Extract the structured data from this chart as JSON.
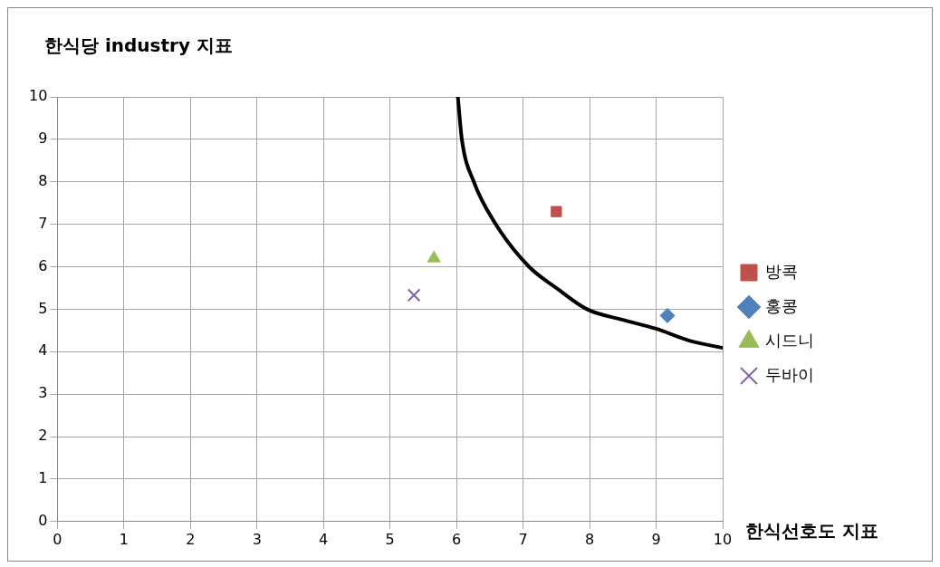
{
  "chart_data": {
    "type": "scatter",
    "xlabel": "한식선호도 지표",
    "ylabel": "한식당 industry 지표",
    "xlim": [
      0,
      10
    ],
    "ylim": [
      0,
      10
    ],
    "xticks": [
      0,
      1,
      2,
      3,
      4,
      5,
      6,
      7,
      8,
      9,
      10
    ],
    "yticks": [
      0,
      1,
      2,
      3,
      4,
      5,
      6,
      7,
      8,
      9,
      10
    ],
    "grid": true,
    "legend": "right",
    "series": [
      {
        "type": "line",
        "color": "#000000",
        "marker": "none",
        "x": [
          6.02,
          6.08,
          6.26,
          6.59,
          7.09,
          7.5,
          7.96,
          8.5,
          9,
          9.5,
          10
        ],
        "values": [
          10,
          9,
          8,
          7,
          6,
          5.5,
          5,
          4.75,
          4.54,
          4.26,
          4.09
        ]
      },
      {
        "name": "방콕",
        "color": "#c0504d",
        "marker": "square",
        "x": [
          7.5
        ],
        "values": [
          7.3
        ]
      },
      {
        "name": "홍콩",
        "color": "#4f81bd",
        "marker": "diamond",
        "x": [
          9.17
        ],
        "values": [
          4.85
        ]
      },
      {
        "name": "시드니",
        "color": "#9bbb59",
        "marker": "triangle",
        "x": [
          5.66
        ],
        "values": [
          6.2
        ]
      },
      {
        "name": "두바이",
        "color": "#8064a2",
        "marker": "cross",
        "x": [
          5.36
        ],
        "values": [
          5.33
        ]
      }
    ]
  }
}
